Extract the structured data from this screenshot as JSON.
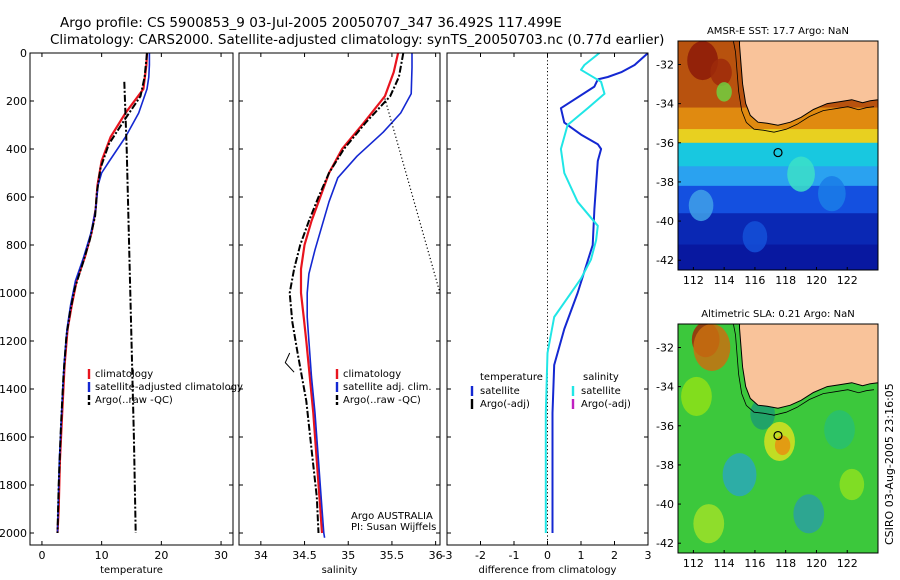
{
  "header": {
    "line1": "Argo profile: CS 5900853_9 03-Jul-2005 20050707_347 36.492S 117.499E",
    "line2": "Climatology: CARS2000. Satellite-adjusted climatology: synTS_20050703.nc (0.77d earlier)"
  },
  "side_text": "CSIRO 03-Aug-2005 23:16:05",
  "colors": {
    "climatology": "#e8141e",
    "satellite": "#1428d2",
    "argo": "#000000",
    "satellite_salinity": "#20e6e6",
    "argo_adj_salinity": "#c020c0",
    "land": "#f9c39a"
  },
  "chart_data": [
    {
      "type": "line",
      "xlabel": "temperature",
      "xlim": [
        -2,
        32
      ],
      "ylim": [
        2050,
        0
      ],
      "xticks": [
        0,
        10,
        20,
        30
      ],
      "yticks": [
        0,
        200,
        400,
        600,
        800,
        1000,
        1200,
        1400,
        1600,
        1800,
        2000
      ],
      "legend": {
        "position": "center-right",
        "entries": [
          "climatology",
          "satellite-adjusted climatology",
          "Argo(..raw -QC)"
        ]
      },
      "series": [
        {
          "name": "climatology",
          "color": "#e8141e",
          "style": "solid",
          "width": 2.2,
          "x": [
            17.6,
            17.5,
            17.0,
            14.0,
            11.5,
            10.0,
            9.3,
            9.0,
            8.3,
            7.2,
            5.8,
            5.0,
            4.3,
            3.8,
            3.4,
            3.0,
            2.8,
            2.6
          ],
          "y": [
            0,
            50,
            150,
            250,
            350,
            450,
            550,
            650,
            750,
            850,
            950,
            1050,
            1150,
            1300,
            1500,
            1700,
            1900,
            2000
          ]
        },
        {
          "name": "satellite-adjusted climatology",
          "color": "#1428d2",
          "style": "solid",
          "width": 1.6,
          "x": [
            18.0,
            18.0,
            17.9,
            17.6,
            16.2,
            14.0,
            11.3,
            10.0,
            9.4,
            9.0,
            8.2,
            7.0,
            5.6,
            4.8,
            4.2,
            3.7,
            3.3,
            2.9,
            2.7,
            2.6
          ],
          "y": [
            0,
            50,
            100,
            150,
            250,
            350,
            450,
            500,
            550,
            650,
            750,
            850,
            950,
            1050,
            1150,
            1300,
            1500,
            1700,
            1900,
            2000
          ]
        },
        {
          "name": "Argo(..raw -QC)",
          "color": "#000000",
          "style": "dashdot",
          "width": 2,
          "x": [
            17.6,
            17.2,
            16.5,
            13.8,
            11.2,
            9.8,
            9.2,
            8.9,
            8.0,
            6.8,
            5.5,
            4.7,
            4.1,
            3.6,
            3.2,
            2.8,
            2.6
          ],
          "y": [
            0,
            100,
            180,
            280,
            380,
            480,
            580,
            680,
            780,
            880,
            980,
            1080,
            1180,
            1350,
            1550,
            1800,
            2000
          ]
        },
        {
          "name": "",
          "color": "#000000",
          "style": "dashdot",
          "width": 2,
          "x": [
            13.8,
            14.2,
            14.6,
            15.0,
            15.4,
            15.7
          ],
          "y": [
            120,
            400,
            800,
            1200,
            1600,
            2000
          ]
        }
      ]
    },
    {
      "type": "line",
      "xlabel": "salinity",
      "xlim": [
        33.75,
        36.05
      ],
      "ylim": [
        2050,
        0
      ],
      "xticks": [
        34,
        34.5,
        35,
        35.5,
        36
      ],
      "legend": {
        "position": "center-right",
        "entries": [
          "climatology",
          "satellite adj. clim.",
          "Argo(..raw -QC)"
        ]
      },
      "annotations": [
        "Argo AUSTRALIA",
        "PI: Susan Wijffels"
      ],
      "series": [
        {
          "name": "climatology",
          "color": "#e8141e",
          "style": "solid",
          "width": 2.2,
          "x": [
            35.57,
            35.52,
            35.42,
            35.18,
            34.93,
            34.78,
            34.68,
            34.58,
            34.5,
            34.46,
            34.46,
            34.49,
            34.52,
            34.56,
            34.6,
            34.64,
            34.68,
            34.7
          ],
          "y": [
            0,
            80,
            180,
            290,
            400,
            500,
            600,
            700,
            800,
            900,
            1000,
            1100,
            1200,
            1350,
            1500,
            1700,
            1900,
            2000
          ]
        },
        {
          "name": "satellite adj. clim.",
          "color": "#1428d2",
          "style": "solid",
          "width": 1.6,
          "x": [
            35.73,
            35.73,
            35.72,
            35.6,
            35.4,
            35.1,
            34.88,
            34.78,
            34.7,
            34.62,
            34.55,
            34.53,
            34.53,
            34.55,
            34.58,
            34.62,
            34.66,
            34.7,
            34.72,
            34.73
          ],
          "y": [
            0,
            60,
            170,
            250,
            330,
            430,
            520,
            620,
            720,
            820,
            920,
            1000,
            1100,
            1200,
            1350,
            1500,
            1700,
            1900,
            2000,
            2020
          ]
        },
        {
          "name": "Argo(..raw -QC)",
          "color": "#000000",
          "style": "dashdot",
          "width": 2,
          "x": [
            35.63,
            35.58,
            35.48,
            35.2,
            34.95,
            34.78,
            34.66,
            34.55,
            34.45,
            34.38,
            34.33,
            34.36,
            34.42,
            34.52,
            34.58,
            34.64,
            34.66
          ],
          "y": [
            0,
            100,
            180,
            290,
            400,
            500,
            600,
            700,
            800,
            900,
            1000,
            1120,
            1250,
            1450,
            1650,
            1850,
            2000
          ]
        },
        {
          "name": "",
          "color": "#000000",
          "style": "dotted",
          "width": 1.2,
          "x": [
            35.42,
            36.05
          ],
          "y": [
            190,
            1000
          ]
        },
        {
          "name": "",
          "color": "#000000",
          "style": "solid",
          "width": 1,
          "x": [
            34.33,
            34.28,
            34.38
          ],
          "y": [
            1250,
            1290,
            1330
          ]
        }
      ]
    },
    {
      "type": "line",
      "xlabel": "difference from climatology",
      "xlim": [
        -3,
        3
      ],
      "ylim": [
        2050,
        0
      ],
      "xticks": [
        -3,
        -2,
        -1,
        0,
        1,
        2,
        3
      ],
      "legend": {
        "position": "center",
        "groups": [
          {
            "title": "temperature",
            "entries": [
              "satellite",
              "Argo(-adj)"
            ]
          },
          {
            "title": "salinity",
            "entries": [
              "satellite",
              "Argo(-adj)"
            ]
          }
        ]
      },
      "series": [
        {
          "name": "",
          "color": "#000000",
          "style": "dotted",
          "width": 1,
          "x": [
            0,
            0
          ],
          "y": [
            0,
            2050
          ]
        },
        {
          "name": "satellite",
          "group": "temperature",
          "color": "#1428d2",
          "style": "solid",
          "width": 2,
          "x": [
            3.0,
            2.6,
            2.2,
            1.8,
            1.5,
            1.4,
            0.4,
            0.5,
            1.0,
            1.5,
            1.6,
            1.5,
            1.45,
            1.4,
            1.35,
            0.9,
            0.5,
            0.2,
            0.15,
            0.15,
            0.15
          ],
          "y": [
            0,
            50,
            80,
            100,
            110,
            140,
            230,
            290,
            340,
            380,
            400,
            450,
            550,
            650,
            800,
            1000,
            1150,
            1300,
            1500,
            1800,
            2000
          ]
        },
        {
          "name": "satellite",
          "group": "salinity",
          "color": "#20e6e6",
          "style": "solid",
          "width": 2,
          "x": [
            1.55,
            1.1,
            1.0,
            1.6,
            1.7,
            1.2,
            0.6,
            0.4,
            0.5,
            0.9,
            1.5,
            1.45,
            1.3,
            1.0,
            0.6,
            0.2,
            0.0,
            -0.05,
            -0.05,
            -0.05
          ],
          "y": [
            0,
            50,
            70,
            120,
            170,
            230,
            300,
            400,
            500,
            620,
            720,
            780,
            860,
            940,
            1020,
            1100,
            1250,
            1500,
            1800,
            2000
          ]
        }
      ]
    },
    {
      "type": "heatmap",
      "title": "AMSR-E SST: 17.7 Argo: NaN",
      "xlim": [
        111.0,
        124.0
      ],
      "ylim": [
        -42.5,
        -30.8
      ],
      "xticks": [
        112,
        114,
        116,
        118,
        120,
        122
      ],
      "yticks": [
        -32,
        -34,
        -36,
        -38,
        -40,
        -42
      ],
      "marker": {
        "lon": 117.5,
        "lat": -36.5
      },
      "bands": [
        {
          "lat_top": -30.8,
          "color": "#b8520e"
        },
        {
          "lat_top": -34.2,
          "color": "#e08a10"
        },
        {
          "lat_top": -35.3,
          "color": "#e8d020"
        },
        {
          "lat_top": -36.0,
          "color": "#18c8e0"
        },
        {
          "lat_top": -37.2,
          "color": "#2aa2f0"
        },
        {
          "lat_top": -38.2,
          "color": "#1450e0"
        },
        {
          "lat_top": -39.6,
          "color": "#0a28b4"
        },
        {
          "lat_top": -41.2,
          "color": "#0818a0"
        }
      ],
      "blobs": [
        {
          "lon": 112.6,
          "lat": -31.8,
          "r": 1.0,
          "color": "#8c1a08"
        },
        {
          "lon": 113.8,
          "lat": -32.4,
          "r": 0.7,
          "color": "#9e2a0a"
        },
        {
          "lon": 114.0,
          "lat": -33.4,
          "r": 0.5,
          "color": "#70d040"
        },
        {
          "lon": 119.0,
          "lat": -37.6,
          "r": 0.9,
          "color": "#3ce0c8"
        },
        {
          "lon": 112.5,
          "lat": -39.2,
          "r": 0.8,
          "color": "#40a0e8"
        },
        {
          "lon": 121.0,
          "lat": -38.6,
          "r": 0.9,
          "color": "#1a7ce8"
        },
        {
          "lon": 116.0,
          "lat": -40.8,
          "r": 0.8,
          "color": "#1450d8"
        }
      ]
    },
    {
      "type": "heatmap",
      "title": "Altimetric SLA: 0.21 Argo: NaN",
      "xlim": [
        111.0,
        124.0
      ],
      "ylim": [
        -42.5,
        -30.8
      ],
      "xticks": [
        112,
        114,
        116,
        118,
        120,
        122
      ],
      "yticks": [
        -32,
        -34,
        -36,
        -38,
        -40,
        -42
      ],
      "marker": {
        "lon": 117.5,
        "lat": -36.5
      },
      "base_color": "#3cc83c",
      "bands": [],
      "blobs": [
        {
          "lon": 112.8,
          "lat": -31.6,
          "r": 0.9,
          "color": "#a02808"
        },
        {
          "lon": 113.2,
          "lat": -32.0,
          "r": 1.2,
          "color": "#c87010"
        },
        {
          "lon": 112.2,
          "lat": -34.5,
          "r": 1.0,
          "color": "#8ee018"
        },
        {
          "lon": 117.6,
          "lat": -36.8,
          "r": 1.0,
          "color": "#d8e020"
        },
        {
          "lon": 117.8,
          "lat": -37.0,
          "r": 0.5,
          "color": "#e89010"
        },
        {
          "lon": 115.0,
          "lat": -38.5,
          "r": 1.1,
          "color": "#2aa8b8"
        },
        {
          "lon": 121.5,
          "lat": -36.2,
          "r": 1.0,
          "color": "#28c070"
        },
        {
          "lon": 113.0,
          "lat": -41.0,
          "r": 1.0,
          "color": "#9ee028"
        },
        {
          "lon": 119.5,
          "lat": -40.5,
          "r": 1.0,
          "color": "#2aa0a0"
        },
        {
          "lon": 122.3,
          "lat": -39.0,
          "r": 0.8,
          "color": "#8ce020"
        },
        {
          "lon": 116.5,
          "lat": -35.4,
          "r": 0.8,
          "color": "#1c9c70"
        }
      ]
    }
  ]
}
